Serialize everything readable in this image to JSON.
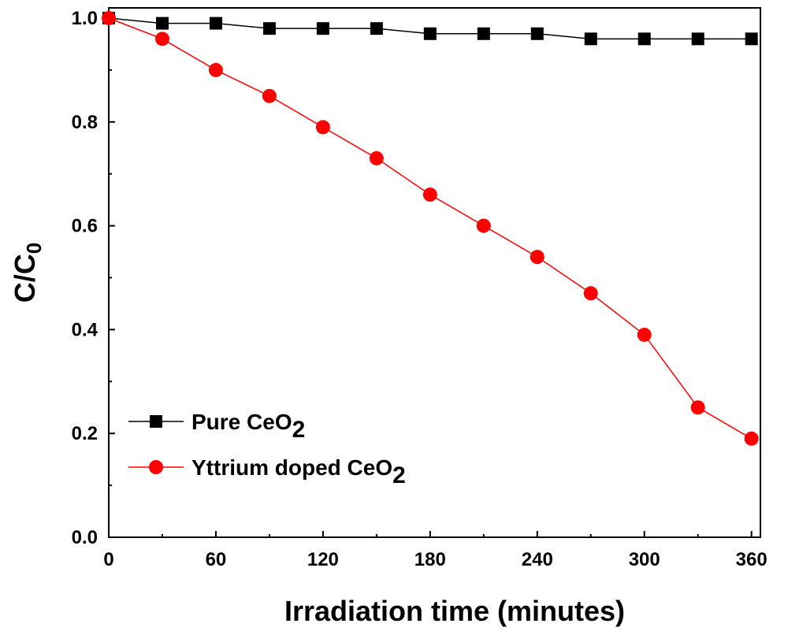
{
  "chart_data": {
    "type": "line",
    "xlabel": "Irradiation time (minutes)",
    "ylabel": "C/C",
    "ylabel_sub": "0",
    "xlim": [
      0,
      365
    ],
    "ylim": [
      0,
      1.0
    ],
    "xticks": [
      0,
      60,
      120,
      180,
      240,
      300,
      360
    ],
    "yticks": [
      0.0,
      0.2,
      0.4,
      0.6,
      0.8,
      1.0
    ],
    "xtick_labels": [
      "0",
      "60",
      "120",
      "180",
      "240",
      "300",
      "360"
    ],
    "ytick_labels": [
      "0.0",
      "0.2",
      "0.4",
      "0.6",
      "0.8",
      "1.0"
    ],
    "grid": false,
    "legend_position": "bottom-left",
    "x": [
      0,
      30,
      60,
      90,
      120,
      150,
      180,
      210,
      240,
      270,
      300,
      330,
      360
    ],
    "series": [
      {
        "name": "Pure CeO",
        "name_sub": "2",
        "color": "#000000",
        "marker": "square",
        "values": [
          1.0,
          0.99,
          0.99,
          0.98,
          0.98,
          0.98,
          0.97,
          0.97,
          0.97,
          0.96,
          0.96,
          0.96,
          0.96
        ]
      },
      {
        "name": "Yttrium doped CeO",
        "name_sub": "2",
        "color": "#ff0000",
        "marker": "circle",
        "values": [
          1.0,
          0.96,
          0.9,
          0.85,
          0.79,
          0.73,
          0.66,
          0.6,
          0.54,
          0.47,
          0.39,
          0.25,
          0.19
        ]
      }
    ]
  }
}
